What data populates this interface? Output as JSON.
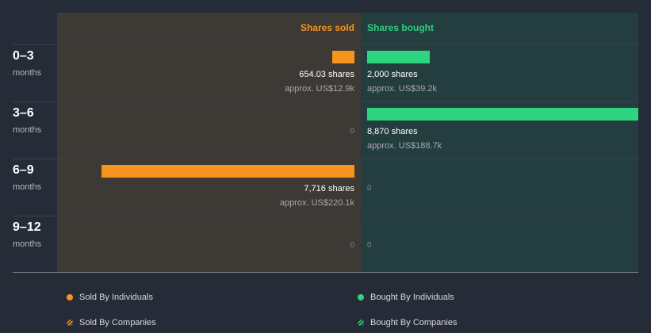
{
  "chart_data": {
    "type": "bar",
    "orientation": "diverging-horizontal",
    "headers": {
      "sold": "Shares sold",
      "bought": "Shares bought"
    },
    "categories": [
      {
        "label": "0–3",
        "sub": "months"
      },
      {
        "label": "3–6",
        "sub": "months"
      },
      {
        "label": "6–9",
        "sub": "months"
      },
      {
        "label": "9–12",
        "sub": "months"
      }
    ],
    "series": [
      {
        "name": "Sold By Individuals",
        "side": "sold",
        "values": [
          654.03,
          0,
          7716,
          0
        ],
        "shares_labels": [
          "654.03 shares",
          "0",
          "7,716 shares",
          "0"
        ],
        "approx_labels": [
          "approx. US$12.9k",
          "",
          "approx. US$220.1k",
          ""
        ]
      },
      {
        "name": "Bought By Individuals",
        "side": "bought",
        "values": [
          2000,
          8870,
          0,
          0
        ],
        "shares_labels": [
          "2,000 shares",
          "8,870 shares",
          "0",
          "0"
        ],
        "approx_labels": [
          "approx. US$39.2k",
          "approx. US$188.7k",
          "",
          ""
        ]
      }
    ],
    "legend": [
      {
        "label": "Sold By Individuals",
        "marker": "dot",
        "color": "#f7941d"
      },
      {
        "label": "Bought By Individuals",
        "marker": "dot",
        "color": "#2ed47f"
      },
      {
        "label": "Sold By Companies",
        "marker": "hatch",
        "color": "#f7941d"
      },
      {
        "label": "Bought By Companies",
        "marker": "hatch",
        "color": "#2ed47f"
      }
    ],
    "legend_position": "bottom",
    "colors": {
      "sold": "#f7941d",
      "bought": "#2ed47f",
      "sold_bg": "#3d3935",
      "bought_bg": "#243d3f",
      "page_bg": "#262b38"
    },
    "grid": true
  }
}
